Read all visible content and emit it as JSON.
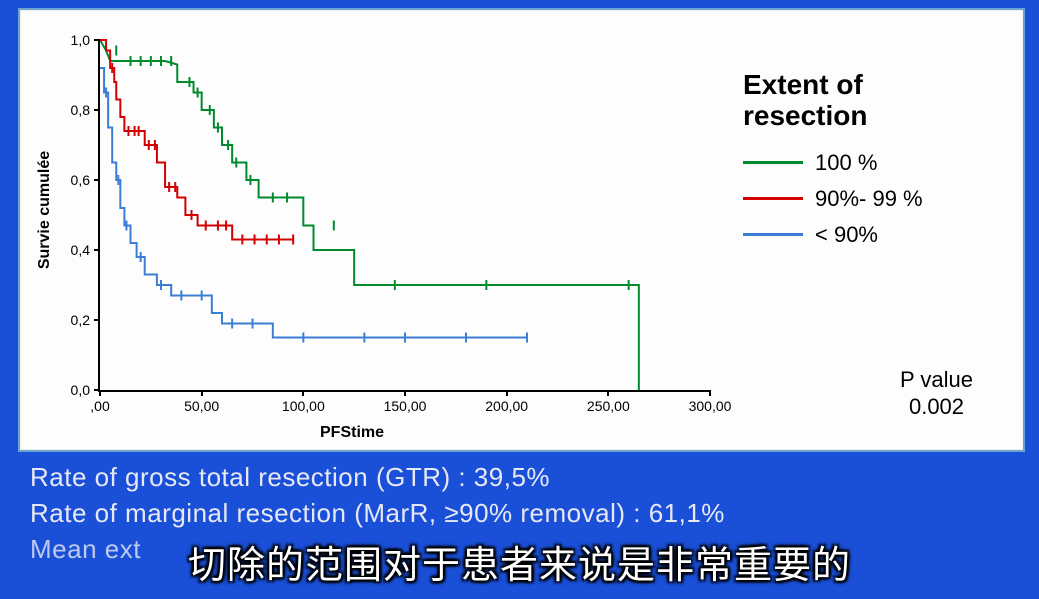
{
  "background_color": "#1a4fd8",
  "panel_border_color": "#6ba4d0",
  "chart": {
    "type": "line",
    "ylabel": "Survie cumulée",
    "xlabel": "PFStime",
    "label_fontsize": 16,
    "xlim": [
      0,
      300
    ],
    "ylim": [
      0,
      1.0
    ],
    "xtick_labels": [
      ",00",
      "50,00",
      "100,00",
      "150,00",
      "200,00",
      "250,00",
      "300,00"
    ],
    "xtick_values": [
      0,
      50,
      100,
      150,
      200,
      250,
      300
    ],
    "ytick_labels": [
      "0,0",
      "0,2",
      "0,4",
      "0,6",
      "0,8",
      "1,0"
    ],
    "ytick_values": [
      0.0,
      0.2,
      0.4,
      0.6,
      0.8,
      1.0
    ],
    "tick_fontsize": 14,
    "axis_color": "#000000",
    "line_width": 2,
    "censor_tick_len": 5,
    "series": [
      {
        "name": "100 %",
        "color": "#008a2e",
        "points": [
          [
            0,
            1.0
          ],
          [
            0,
            1.0
          ],
          [
            3,
            0.97
          ],
          [
            3,
            0.97
          ],
          [
            5,
            0.94
          ],
          [
            12,
            0.94
          ],
          [
            18,
            0.94
          ],
          [
            22,
            0.94
          ],
          [
            28,
            0.94
          ],
          [
            32,
            0.94
          ],
          [
            38,
            0.93
          ],
          [
            38,
            0.88
          ],
          [
            40,
            0.88
          ],
          [
            42,
            0.88
          ],
          [
            46,
            0.88
          ],
          [
            46,
            0.85
          ],
          [
            48,
            0.85
          ],
          [
            50,
            0.85
          ],
          [
            50,
            0.8
          ],
          [
            52,
            0.8
          ],
          [
            54,
            0.8
          ],
          [
            56,
            0.8
          ],
          [
            56,
            0.75
          ],
          [
            60,
            0.75
          ],
          [
            60,
            0.7
          ],
          [
            62,
            0.7
          ],
          [
            65,
            0.7
          ],
          [
            65,
            0.65
          ],
          [
            68,
            0.65
          ],
          [
            70,
            0.65
          ],
          [
            72,
            0.65
          ],
          [
            72,
            0.6
          ],
          [
            76,
            0.6
          ],
          [
            78,
            0.6
          ],
          [
            78,
            0.55
          ],
          [
            88,
            0.55
          ],
          [
            90,
            0.55
          ],
          [
            100,
            0.55
          ],
          [
            100,
            0.47
          ],
          [
            105,
            0.47
          ],
          [
            105,
            0.4
          ],
          [
            120,
            0.4
          ],
          [
            120,
            0.4
          ],
          [
            125,
            0.4
          ],
          [
            125,
            0.3
          ],
          [
            155,
            0.3
          ],
          [
            200,
            0.3
          ],
          [
            260,
            0.3
          ],
          [
            265,
            0.3
          ],
          [
            265,
            0.0
          ]
        ],
        "censors": [
          [
            8,
            0.97
          ],
          [
            15,
            0.94
          ],
          [
            20,
            0.94
          ],
          [
            25,
            0.94
          ],
          [
            30,
            0.94
          ],
          [
            35,
            0.94
          ],
          [
            44,
            0.88
          ],
          [
            48,
            0.85
          ],
          [
            54,
            0.8
          ],
          [
            58,
            0.75
          ],
          [
            63,
            0.7
          ],
          [
            67,
            0.65
          ],
          [
            74,
            0.6
          ],
          [
            85,
            0.55
          ],
          [
            92,
            0.55
          ],
          [
            115,
            0.47
          ],
          [
            145,
            0.3
          ],
          [
            190,
            0.3
          ],
          [
            260,
            0.3
          ]
        ]
      },
      {
        "name": "90%- 99 %",
        "color": "#d40000",
        "points": [
          [
            0,
            1.0
          ],
          [
            3,
            1.0
          ],
          [
            3,
            0.97
          ],
          [
            5,
            0.97
          ],
          [
            5,
            0.92
          ],
          [
            7,
            0.92
          ],
          [
            7,
            0.88
          ],
          [
            8,
            0.88
          ],
          [
            8,
            0.83
          ],
          [
            10,
            0.83
          ],
          [
            10,
            0.78
          ],
          [
            12,
            0.78
          ],
          [
            12,
            0.74
          ],
          [
            15,
            0.74
          ],
          [
            18,
            0.74
          ],
          [
            20,
            0.74
          ],
          [
            22,
            0.74
          ],
          [
            22,
            0.7
          ],
          [
            25,
            0.7
          ],
          [
            28,
            0.7
          ],
          [
            28,
            0.65
          ],
          [
            32,
            0.65
          ],
          [
            32,
            0.58
          ],
          [
            35,
            0.58
          ],
          [
            38,
            0.58
          ],
          [
            38,
            0.55
          ],
          [
            42,
            0.55
          ],
          [
            42,
            0.5
          ],
          [
            48,
            0.5
          ],
          [
            48,
            0.47
          ],
          [
            55,
            0.47
          ],
          [
            60,
            0.47
          ],
          [
            65,
            0.47
          ],
          [
            65,
            0.43
          ],
          [
            72,
            0.43
          ],
          [
            80,
            0.43
          ],
          [
            88,
            0.43
          ],
          [
            95,
            0.43
          ]
        ],
        "censors": [
          [
            6,
            0.92
          ],
          [
            14,
            0.74
          ],
          [
            17,
            0.74
          ],
          [
            19,
            0.74
          ],
          [
            24,
            0.7
          ],
          [
            27,
            0.7
          ],
          [
            34,
            0.58
          ],
          [
            37,
            0.58
          ],
          [
            45,
            0.5
          ],
          [
            52,
            0.47
          ],
          [
            58,
            0.47
          ],
          [
            62,
            0.47
          ],
          [
            70,
            0.43
          ],
          [
            76,
            0.43
          ],
          [
            82,
            0.43
          ],
          [
            88,
            0.43
          ],
          [
            95,
            0.43
          ]
        ]
      },
      {
        "name": "< 90%",
        "color": "#3a7fd5",
        "points": [
          [
            0,
            0.92
          ],
          [
            2,
            0.92
          ],
          [
            2,
            0.85
          ],
          [
            4,
            0.85
          ],
          [
            4,
            0.75
          ],
          [
            6,
            0.75
          ],
          [
            6,
            0.65
          ],
          [
            8,
            0.65
          ],
          [
            8,
            0.6
          ],
          [
            10,
            0.6
          ],
          [
            10,
            0.52
          ],
          [
            12,
            0.52
          ],
          [
            12,
            0.47
          ],
          [
            15,
            0.47
          ],
          [
            15,
            0.42
          ],
          [
            18,
            0.42
          ],
          [
            18,
            0.38
          ],
          [
            22,
            0.38
          ],
          [
            22,
            0.33
          ],
          [
            28,
            0.33
          ],
          [
            28,
            0.3
          ],
          [
            35,
            0.3
          ],
          [
            35,
            0.27
          ],
          [
            45,
            0.27
          ],
          [
            45,
            0.27
          ],
          [
            55,
            0.27
          ],
          [
            55,
            0.22
          ],
          [
            60,
            0.22
          ],
          [
            60,
            0.19
          ],
          [
            78,
            0.19
          ],
          [
            78,
            0.19
          ],
          [
            85,
            0.19
          ],
          [
            85,
            0.15
          ],
          [
            120,
            0.15
          ],
          [
            140,
            0.15
          ],
          [
            160,
            0.15
          ],
          [
            200,
            0.15
          ],
          [
            210,
            0.15
          ]
        ],
        "censors": [
          [
            3,
            0.85
          ],
          [
            9,
            0.6
          ],
          [
            13,
            0.47
          ],
          [
            20,
            0.38
          ],
          [
            30,
            0.3
          ],
          [
            40,
            0.27
          ],
          [
            50,
            0.27
          ],
          [
            65,
            0.19
          ],
          [
            75,
            0.19
          ],
          [
            100,
            0.15
          ],
          [
            130,
            0.15
          ],
          [
            150,
            0.15
          ],
          [
            180,
            0.15
          ],
          [
            210,
            0.15
          ]
        ]
      }
    ]
  },
  "legend": {
    "title": "Extent of\nresection",
    "title_fontsize": 28,
    "item_fontsize": 22,
    "items": [
      {
        "label": "100 %",
        "color": "#008a2e"
      },
      {
        "label": "90%- 99 %",
        "color": "#d40000"
      },
      {
        "label": "< 90%",
        "color": "#3a7fd5"
      }
    ]
  },
  "pvalue": {
    "label1": "P value",
    "label2": "0.002",
    "fontsize": 22
  },
  "footer": {
    "line1": "Rate of gross total resection (GTR) : 39,5%",
    "line2": "Rate of marginal resection (MarR, ≥90% removal) : 61,1%",
    "line3_prefix": "Mean ext",
    "fontsize": 26,
    "color": "#e6e8f5"
  },
  "subtitle": {
    "text": "切除的范围对于患者来说是非常重要的",
    "fontsize": 38
  }
}
